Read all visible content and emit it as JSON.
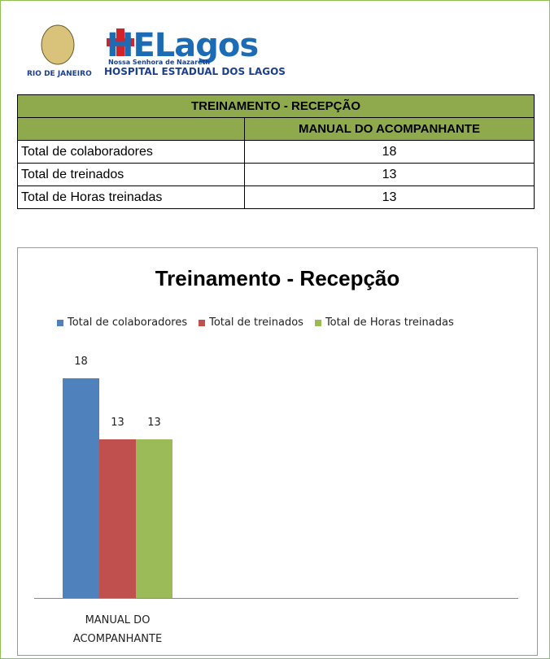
{
  "header": {
    "logo_text": "HELagos",
    "logo_subtitle": "Nossa Senhora de Nazareth",
    "hospital_name": "HOSPITAL ESTADUAL DOS LAGOS",
    "state": "RIO DE JANEIRO"
  },
  "table": {
    "title": "TREINAMENTO - RECEPÇÃO",
    "column_header": "MANUAL DO ACOMPANHANTE",
    "rows": [
      [
        "Total de colaboradores",
        18
      ],
      [
        "Total de treinados",
        13
      ],
      [
        "Total de Horas treinadas",
        13
      ]
    ]
  },
  "chart_data": {
    "type": "bar",
    "title": "Treinamento - Recepção",
    "categories": [
      "MANUAL DO ACOMPANHANTE"
    ],
    "series": [
      {
        "name": "Total de colaboradores",
        "color": "#4f81bd",
        "values": [
          18
        ]
      },
      {
        "name": "Total de treinados",
        "color": "#c0504d",
        "values": [
          13
        ]
      },
      {
        "name": "Total de Horas treinadas",
        "color": "#9bbb59",
        "values": [
          13
        ]
      }
    ],
    "ylim": [
      0,
      20
    ],
    "legend": "top"
  }
}
